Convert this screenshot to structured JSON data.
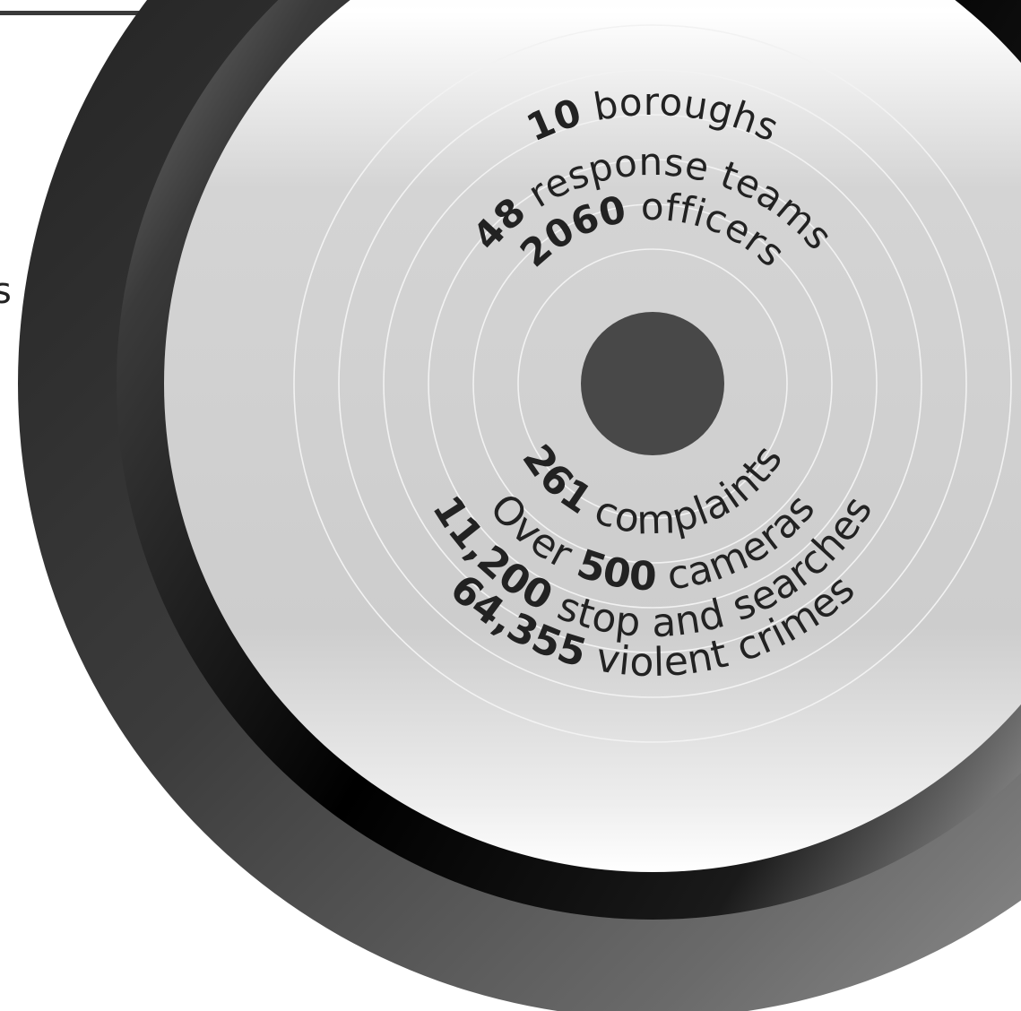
{
  "left_edge_glyph": "s",
  "stats_top": [
    {
      "num": "10",
      "label": " boroughs"
    },
    {
      "num": "48",
      "label": " response teams"
    },
    {
      "num": "2060",
      "label": " officers"
    }
  ],
  "stats_bottom": [
    {
      "num": "261",
      "label": " complaints"
    },
    {
      "prefix": "Over ",
      "num": "500",
      "label": " cameras"
    },
    {
      "num": "11,200",
      "label": " stop and searches"
    },
    {
      "num": "64,355",
      "label": " violent crimes"
    }
  ],
  "colors": {
    "page": "#ffffff",
    "frame_line": "#3a3a3a",
    "dark_ring": "#2b2b2b",
    "black_band": "#000000",
    "inner_disc": "#d0d0d0",
    "center_dot": "#484848",
    "text": "#222222"
  },
  "icons": {
    "center": "bullseye-center-dot"
  }
}
